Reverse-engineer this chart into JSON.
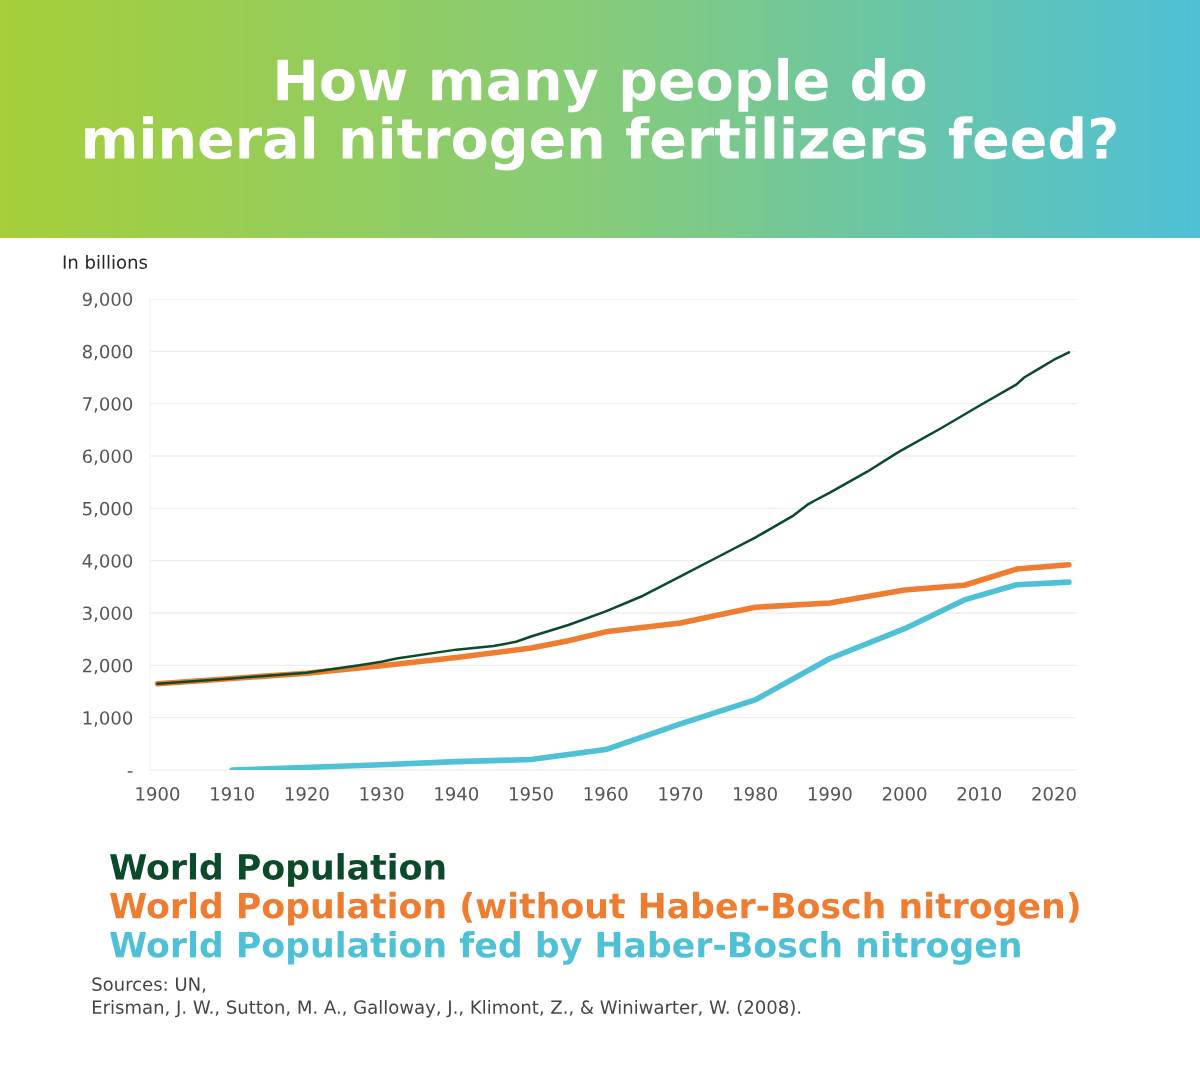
{
  "chart_data": {
    "type": "line",
    "title": "How many people do\nmineral nitrogen fertilizers feed?",
    "ylabel": "In billions",
    "xlim": [
      1899,
      2023
    ],
    "xticks": [
      1900,
      1910,
      1920,
      1930,
      1940,
      1950,
      1960,
      1970,
      1980,
      1990,
      2000,
      2010,
      2020
    ],
    "ylim": [
      0,
      9000
    ],
    "yticks": [
      {
        "value": 0,
        "label": "-"
      },
      {
        "value": 1000,
        "label": "1,000"
      },
      {
        "value": 2000,
        "label": "2,000"
      },
      {
        "value": 3000,
        "label": "3,000"
      },
      {
        "value": 4000,
        "label": "4,000"
      },
      {
        "value": 5000,
        "label": "5,000"
      },
      {
        "value": 6000,
        "label": "6,000"
      },
      {
        "value": 7000,
        "label": "7,000"
      },
      {
        "value": 8000,
        "label": "8,000"
      },
      {
        "value": 9000,
        "label": "9,000"
      }
    ],
    "grid": "y",
    "legend": "bottom",
    "series": [
      {
        "name": "World Population",
        "color": "#0b4a2a",
        "x": [
          1900,
          1910,
          1920,
          1927,
          1930,
          1932,
          1940,
          1945,
          1948,
          1950,
          1955,
          1960,
          1965,
          1970,
          1975,
          1980,
          1985,
          1987,
          1988,
          1990,
          1995,
          1999,
          2000,
          2005,
          2010,
          2015,
          2016,
          2018,
          2020,
          2022
        ],
        "values": [
          1650,
          1750,
          1860,
          2000,
          2070,
          2130,
          2300,
          2370,
          2450,
          2550,
          2770,
          3030,
          3330,
          3700,
          4070,
          4440,
          4850,
          5070,
          5150,
          5300,
          5700,
          6060,
          6140,
          6540,
          6960,
          7370,
          7500,
          7670,
          7840,
          7980
        ]
      },
      {
        "name": "World Population (without Haber-Bosch nitrogen)",
        "color": "#ee7d31",
        "x": [
          1900,
          1910,
          1920,
          1930,
          1940,
          1950,
          1955,
          1960,
          1970,
          1980,
          1990,
          2000,
          2008,
          2015,
          2022
        ],
        "values": [
          1650,
          1750,
          1850,
          1990,
          2150,
          2330,
          2470,
          2640,
          2810,
          3110,
          3190,
          3440,
          3530,
          3840,
          3920
        ]
      },
      {
        "name": "World Population fed by Haber-Bosch nitrogen",
        "color": "#4fc1d6",
        "x": [
          1910,
          1930,
          1940,
          1950,
          1960,
          1970,
          1980,
          1990,
          2000,
          2008,
          2015,
          2022
        ],
        "values": [
          0,
          100,
          160,
          200,
          390,
          880,
          1340,
          2130,
          2700,
          3250,
          3540,
          3590
        ]
      }
    ],
    "annotations": [
      "Sources: UN,\nErisman, J. W., Sutton, M. A., Galloway, J., Klimont, Z., & Winiwarter, W. (2008)."
    ]
  }
}
